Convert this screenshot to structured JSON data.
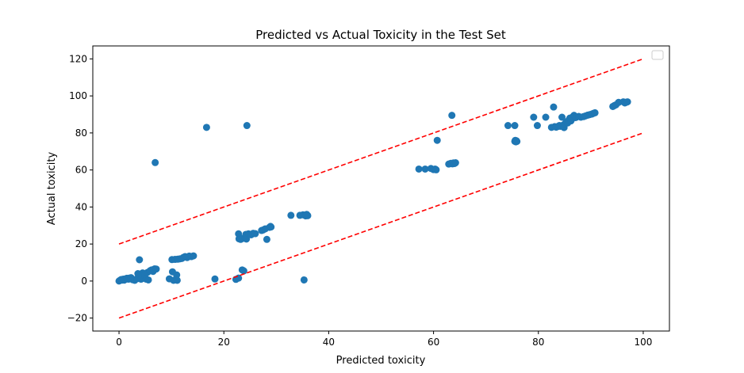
{
  "chart_data": {
    "type": "scatter",
    "title": "Predicted vs Actual Toxicity in the Test Set",
    "xlabel": "Predicted toxicity",
    "ylabel": "Actual toxicity",
    "xlim": [
      -5,
      105
    ],
    "ylim": [
      -27,
      127
    ],
    "xticks": [
      0,
      20,
      40,
      60,
      80,
      100
    ],
    "yticks": [
      -20,
      0,
      20,
      40,
      60,
      80,
      100,
      120
    ],
    "grid": false,
    "legend": {
      "location": "top-right",
      "entries": []
    },
    "marker_color": "#1f77b4",
    "band_color": "#ff0000",
    "bands": [
      {
        "x": [
          0,
          100
        ],
        "y": [
          20,
          120
        ],
        "style": "dashed"
      },
      {
        "x": [
          0,
          100
        ],
        "y": [
          -20,
          80
        ],
        "style": "dashed"
      }
    ],
    "series": [
      {
        "points": [
          [
            0,
            0
          ],
          [
            0.2,
            0.4
          ],
          [
            0.4,
            0.8
          ],
          [
            0.6,
            0.5
          ],
          [
            0.8,
            1
          ],
          [
            1,
            0.5
          ],
          [
            1.2,
            1.2
          ],
          [
            1.5,
            1.5
          ],
          [
            1.8,
            1
          ],
          [
            2,
            1.6
          ],
          [
            2.3,
            1.8
          ],
          [
            2.6,
            0.7
          ],
          [
            3,
            0.4
          ],
          [
            3.4,
            1.2
          ],
          [
            3.6,
            4
          ],
          [
            3.9,
            11.5
          ],
          [
            4.2,
            1
          ],
          [
            4.5,
            4.4
          ],
          [
            4.9,
            3
          ],
          [
            5.2,
            1
          ],
          [
            5.4,
            4.6
          ],
          [
            5.6,
            0.6
          ],
          [
            5.9,
            5.5
          ],
          [
            6.2,
            6
          ],
          [
            6.5,
            5.2
          ],
          [
            6.6,
            6.2
          ],
          [
            6.8,
            6.6
          ],
          [
            6.9,
            64
          ],
          [
            7.1,
            6.5
          ],
          [
            9.6,
            1.2
          ],
          [
            10.1,
            11.6
          ],
          [
            10.2,
            5
          ],
          [
            10.4,
            0.4
          ],
          [
            10.7,
            11.7
          ],
          [
            11,
            3.3
          ],
          [
            11.1,
            0.4
          ],
          [
            11.2,
            11.8
          ],
          [
            11.6,
            12
          ],
          [
            12,
            12.2
          ],
          [
            12.3,
            12.8
          ],
          [
            12.6,
            13.2
          ],
          [
            13,
            12.7
          ],
          [
            13.4,
            13.5
          ],
          [
            13.8,
            13.2
          ],
          [
            14.2,
            13.6
          ],
          [
            16.7,
            83
          ],
          [
            18.3,
            1.1
          ],
          [
            22.3,
            0.9
          ],
          [
            22.8,
            1.6
          ],
          [
            22.8,
            25.5
          ],
          [
            22.9,
            22.8
          ],
          [
            23.2,
            22.5
          ],
          [
            23.5,
            6
          ],
          [
            23.6,
            23
          ],
          [
            23.8,
            5.5
          ],
          [
            24,
            23.5
          ],
          [
            24.2,
            25.2
          ],
          [
            24.3,
            22.7
          ],
          [
            24.4,
            84
          ],
          [
            24.7,
            25.5
          ],
          [
            25.2,
            25
          ],
          [
            25.6,
            25.8
          ],
          [
            26,
            25.6
          ],
          [
            27.2,
            27.3
          ],
          [
            27.5,
            27.6
          ],
          [
            27.9,
            28.2
          ],
          [
            28.2,
            22.5
          ],
          [
            28.7,
            29
          ],
          [
            28.9,
            29.5
          ],
          [
            29,
            29.2
          ],
          [
            32.8,
            35.5
          ],
          [
            34.5,
            35.5
          ],
          [
            35.1,
            35.8
          ],
          [
            35.3,
            0.6
          ],
          [
            35.6,
            35.2
          ],
          [
            35.8,
            36
          ],
          [
            36,
            35.3
          ],
          [
            57.2,
            60.5
          ],
          [
            58.4,
            60.5
          ],
          [
            59.5,
            60.8
          ],
          [
            60,
            60.2
          ],
          [
            60.3,
            60.5
          ],
          [
            60.5,
            60.1
          ],
          [
            60.7,
            76
          ],
          [
            62.9,
            63.2
          ],
          [
            63.3,
            63.6
          ],
          [
            63.5,
            89.5
          ],
          [
            63.6,
            63.3
          ],
          [
            63.8,
            63.8
          ],
          [
            64,
            63.5
          ],
          [
            64.2,
            63.9
          ],
          [
            74.2,
            84
          ],
          [
            75.5,
            84
          ],
          [
            75.5,
            75.5
          ],
          [
            75.6,
            76
          ],
          [
            75.7,
            75.2
          ],
          [
            75.8,
            75.8
          ],
          [
            75.9,
            75.4
          ],
          [
            79.1,
            88.5
          ],
          [
            79.8,
            84
          ],
          [
            81.4,
            88.5
          ],
          [
            82.5,
            83
          ],
          [
            82.9,
            94
          ],
          [
            83.1,
            83.4
          ],
          [
            83.4,
            83.1
          ],
          [
            83.7,
            83.5
          ],
          [
            84,
            84
          ],
          [
            84.2,
            83.6
          ],
          [
            84.5,
            88.5
          ],
          [
            84.7,
            84.2
          ],
          [
            84.9,
            82.9
          ],
          [
            85.1,
            85
          ],
          [
            85.3,
            86
          ],
          [
            85.6,
            85.4
          ],
          [
            85.8,
            87
          ],
          [
            86,
            88
          ],
          [
            86.2,
            86.5
          ],
          [
            86.4,
            87.5
          ],
          [
            86.6,
            88.8
          ],
          [
            86.8,
            89.5
          ],
          [
            87.1,
            88.3
          ],
          [
            87.3,
            88.6
          ],
          [
            87.7,
            88.9
          ],
          [
            88.1,
            88.5
          ],
          [
            88.6,
            88.8
          ],
          [
            89,
            89.2
          ],
          [
            89.4,
            89.6
          ],
          [
            89.8,
            89.9
          ],
          [
            90.2,
            90.2
          ],
          [
            90.5,
            90.6
          ],
          [
            90.8,
            90.9
          ],
          [
            94.2,
            94.3
          ],
          [
            94.5,
            94.8
          ],
          [
            94.8,
            95.2
          ],
          [
            95.3,
            96.5
          ],
          [
            96.2,
            96.8
          ],
          [
            96.5,
            96.2
          ],
          [
            96.8,
            96.6
          ],
          [
            97,
            96.8
          ]
        ]
      }
    ]
  }
}
